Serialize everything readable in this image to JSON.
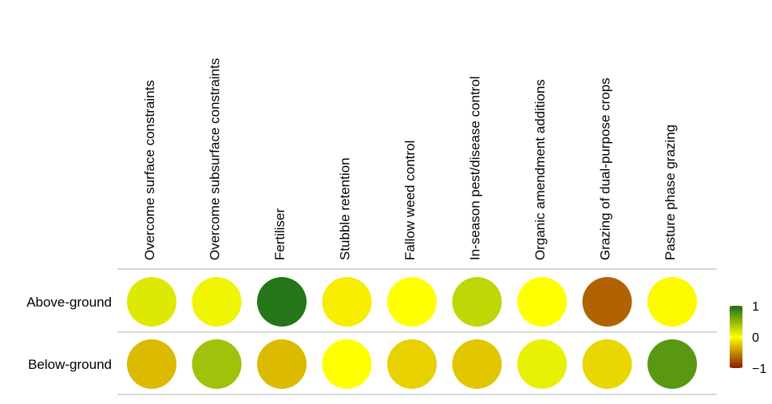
{
  "chart_data": {
    "type": "heatmap",
    "title": "",
    "xlabel": "",
    "ylabel": "",
    "columns": [
      "Overcome surface constraints",
      "Overcome subsurface constraints",
      "Fertiliser",
      "Stubble retention",
      "Fallow weed control",
      "In-season pest/disease control",
      "Organic amendment additions",
      "Grazing of dual-purpose crops",
      "Pasture phase grazing"
    ],
    "rows": [
      "Above-ground",
      "Below-ground"
    ],
    "values": [
      [
        0.15,
        0.07,
        0.95,
        -0.08,
        0.0,
        0.28,
        0.0,
        -0.68,
        -0.02
      ],
      [
        -0.3,
        0.42,
        -0.3,
        0.0,
        -0.2,
        -0.25,
        0.1,
        -0.18,
        0.72
      ]
    ],
    "colorbar": {
      "min": -1,
      "max": 1,
      "tick_labels": [
        "1",
        "0",
        "−1"
      ],
      "tick_values": [
        1,
        0,
        -1
      ],
      "colors": {
        "low": "#8b1a00",
        "mid": "#ffff00",
        "high": "#1a6e1a"
      }
    },
    "grid": "row separators"
  }
}
